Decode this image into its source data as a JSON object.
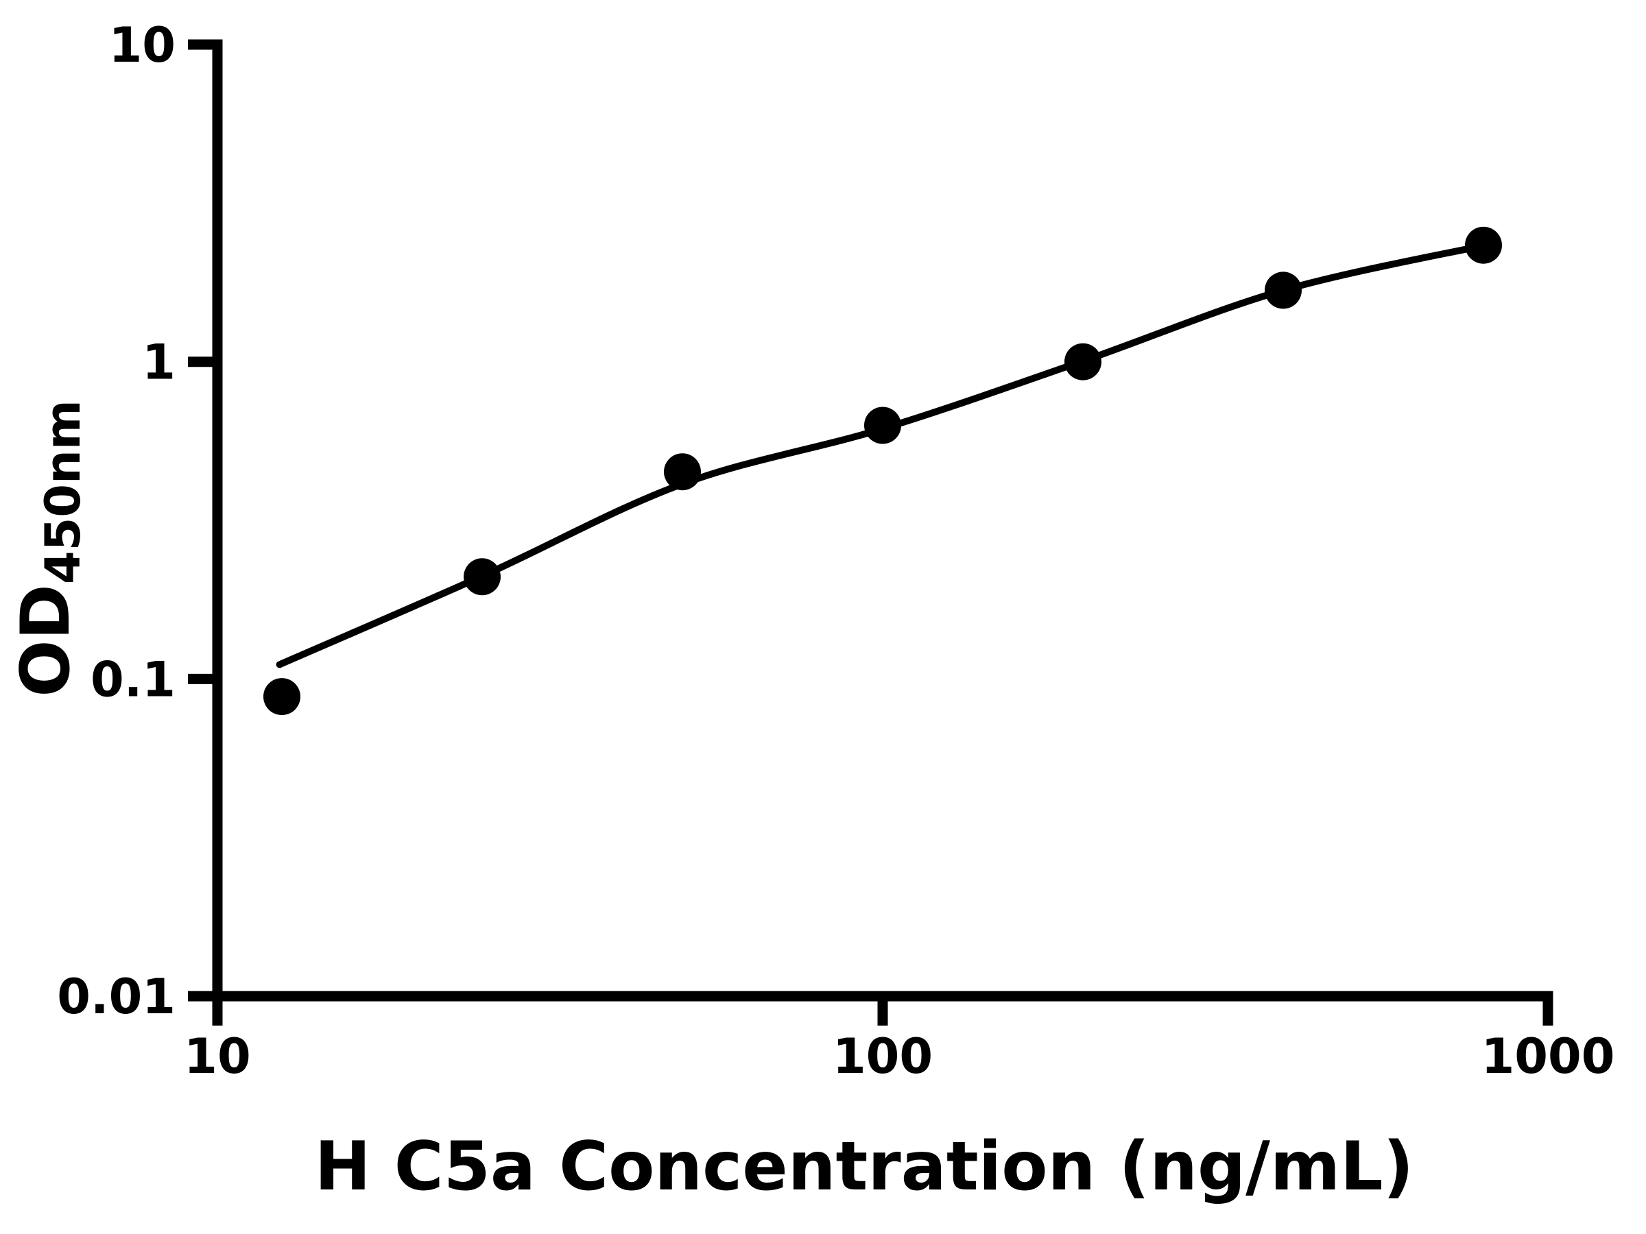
{
  "chart_data": {
    "type": "scatter",
    "title": "",
    "xlabel": "H C5a Concentration (ng/mL)",
    "ylabel_main": "OD",
    "ylabel_sub": "450nm",
    "x_scale": "log",
    "y_scale": "log",
    "xlim": [
      10,
      1000
    ],
    "ylim": [
      0.01,
      10
    ],
    "grid": false,
    "legend": false,
    "x_ticks": [
      {
        "value": 10,
        "label": "10"
      },
      {
        "value": 100,
        "label": "100"
      },
      {
        "value": 1000,
        "label": "1000"
      }
    ],
    "y_ticks": [
      {
        "value": 10,
        "label": "10"
      },
      {
        "value": 1,
        "label": "1"
      },
      {
        "value": 0.1,
        "label": "0.1"
      },
      {
        "value": 0.01,
        "label": "0.01"
      }
    ],
    "series": [
      {
        "name": "standard-points",
        "type": "scatter",
        "marker": "filled-circle",
        "color": "#000000",
        "points": [
          {
            "x": 12.5,
            "y": 0.088
          },
          {
            "x": 25,
            "y": 0.21
          },
          {
            "x": 50,
            "y": 0.45
          },
          {
            "x": 100,
            "y": 0.63
          },
          {
            "x": 200,
            "y": 1.0
          },
          {
            "x": 400,
            "y": 1.68
          },
          {
            "x": 800,
            "y": 2.33
          }
        ]
      },
      {
        "name": "fit-curve",
        "type": "line",
        "color": "#000000",
        "points": [
          {
            "x": 12.4,
            "y": 0.111
          },
          {
            "x": 25,
            "y": 0.211
          },
          {
            "x": 50,
            "y": 0.412
          },
          {
            "x": 100,
            "y": 0.615
          },
          {
            "x": 200,
            "y": 1.005
          },
          {
            "x": 400,
            "y": 1.68
          },
          {
            "x": 800,
            "y": 2.325
          }
        ]
      }
    ]
  },
  "colors": {
    "foreground": "#000000",
    "background": "#ffffff"
  }
}
